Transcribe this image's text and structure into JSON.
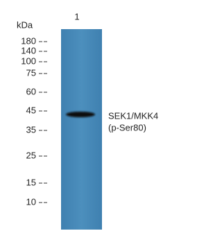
{
  "header": {
    "unit": "kDa",
    "lane": "1"
  },
  "markers": [
    "180",
    "140",
    "100",
    "75",
    "60",
    "45",
    "35",
    "25",
    "15",
    "10"
  ],
  "band_label": {
    "line1": "SEK1/MKK4",
    "line2": "(p-Ser80)"
  }
}
